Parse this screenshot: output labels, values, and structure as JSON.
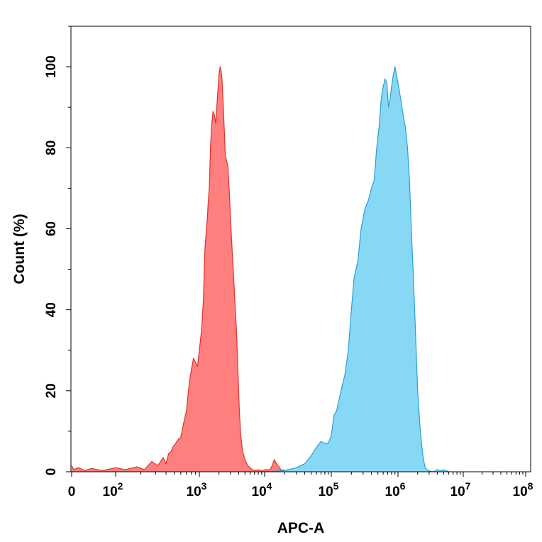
{
  "chart_data": {
    "type": "area",
    "xlabel": "APC-A",
    "ylabel": "Count (%)",
    "x_scale": "biexponential",
    "xlim": [
      0,
      100000000
    ],
    "ylim": [
      0,
      110
    ],
    "grid": false,
    "x_ticks": [
      {
        "value": 0,
        "base": "0",
        "exp": ""
      },
      {
        "value": 100,
        "base": "10",
        "exp": "2"
      },
      {
        "value": 1000,
        "base": "10",
        "exp": "3"
      },
      {
        "value": 10000,
        "base": "10",
        "exp": "4"
      },
      {
        "value": 100000,
        "base": "10",
        "exp": "5"
      },
      {
        "value": 1000000,
        "base": "10",
        "exp": "6"
      },
      {
        "value": 10000000,
        "base": "10",
        "exp": "7"
      },
      {
        "value": 100000000,
        "base": "10",
        "exp": "8"
      }
    ],
    "y_ticks": [
      0,
      20,
      40,
      60,
      80,
      100
    ],
    "series": [
      {
        "fill": "#ff7f7f",
        "stroke": "#e0312a",
        "x": [
          0,
          5,
          15,
          30,
          45,
          70,
          100,
          130,
          180,
          220,
          270,
          320,
          370,
          400,
          430,
          460,
          480,
          520,
          560,
          600,
          650,
          700,
          760,
          800,
          850,
          900,
          950,
          1000,
          1080,
          1150,
          1220,
          1280,
          1320,
          1360,
          1420,
          1480,
          1550,
          1620,
          1700,
          1780,
          1850,
          1920,
          2000,
          2080,
          2150,
          2220,
          2300,
          2400,
          2500,
          2600,
          2750,
          2900,
          3100,
          3300,
          3500,
          3700,
          3900,
          4100,
          4300,
          4600,
          5000,
          5500,
          6000,
          6500,
          7000,
          8000,
          9000,
          10000,
          11000,
          12000,
          13000,
          14000,
          15000,
          16000,
          17000,
          18000,
          19000,
          20000,
          22000,
          25000,
          28000,
          30000
        ],
        "y": [
          1.5,
          0.5,
          1.0,
          0.3,
          0.8,
          0.3,
          1.0,
          0.5,
          1.2,
          0.5,
          2.5,
          1.5,
          3.5,
          2.0,
          4.5,
          5.0,
          6.0,
          7.0,
          8.0,
          8.5,
          12,
          15,
          22,
          25,
          28,
          27,
          26,
          30,
          35,
          42,
          55,
          60,
          62,
          66,
          70,
          80,
          86,
          89,
          88,
          86,
          90,
          94,
          98,
          100,
          99,
          97,
          92,
          85,
          78,
          77,
          75,
          68,
          58,
          50,
          42,
          35,
          25,
          15,
          9,
          5,
          3,
          1.5,
          1.0,
          0.5,
          0.3,
          0.5,
          0.2,
          0.5,
          0.5,
          0.5,
          1.5,
          3.0,
          2.0,
          1.5,
          0.8,
          0.3,
          0.5,
          0.2,
          0.5,
          0.3,
          0.5,
          0
        ]
      },
      {
        "fill": "#86d8f5",
        "stroke": "#2a9fd6",
        "x": [
          10000,
          20000,
          30000,
          40000,
          50000,
          60000,
          70000,
          80000,
          90000,
          100000,
          110000,
          120000,
          140000,
          160000,
          180000,
          200000,
          220000,
          250000,
          280000,
          320000,
          360000,
          400000,
          440000,
          480000,
          520000,
          560000,
          600000,
          640000,
          680000,
          720000,
          760000,
          800000,
          850000,
          900000,
          950000,
          1000000,
          1050000,
          1100000,
          1150000,
          1200000,
          1300000,
          1400000,
          1500000,
          1600000,
          1700000,
          1800000,
          1900000,
          2000000,
          2200000,
          2400000,
          2600000,
          2800000,
          3000000,
          3500000,
          4000000,
          4500000,
          5000000,
          6000000
        ],
        "y": [
          0,
          0.3,
          1.0,
          2.0,
          4.0,
          6.0,
          7.5,
          7.0,
          7.0,
          9.0,
          14,
          15,
          20,
          24,
          30,
          40,
          48,
          52,
          60,
          65,
          67,
          70,
          72,
          80,
          85,
          92,
          95,
          97,
          96,
          90,
          92,
          95,
          98,
          100,
          98,
          96,
          94,
          92,
          90,
          88,
          85,
          80,
          72,
          60,
          50,
          40,
          30,
          20,
          10,
          4,
          1,
          0.5,
          0.2,
          0,
          0.5,
          0.3,
          0.5,
          0
        ]
      }
    ]
  }
}
